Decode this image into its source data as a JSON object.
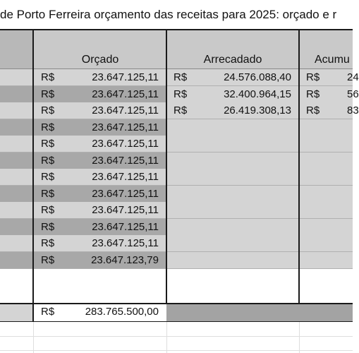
{
  "title": "de Porto Ferreira orçamento das receitas para 2025: orçado e r",
  "headers": {
    "orcado": "Orçado",
    "arrecadado": "Arrecadado",
    "acumulado": "Acumu"
  },
  "currency": "R$",
  "rows": [
    {
      "orcado": "23.647.125,11",
      "arrecadado": "24.576.088,40",
      "acumulado": "24"
    },
    {
      "orcado": "23.647.125,11",
      "arrecadado": "32.400.964,15",
      "acumulado": "56"
    },
    {
      "orcado": "23.647.125,11",
      "arrecadado": "26.419.308,13",
      "acumulado": "83"
    },
    {
      "orcado": "23.647.125,11",
      "arrecadado": "",
      "acumulado": ""
    },
    {
      "orcado": "23.647.125,11",
      "arrecadado": "",
      "acumulado": ""
    },
    {
      "orcado": "23.647.125,11",
      "arrecadado": "",
      "acumulado": ""
    },
    {
      "orcado": "23.647.125,11",
      "arrecadado": "",
      "acumulado": ""
    },
    {
      "orcado": "23.647.125,11",
      "arrecadado": "",
      "acumulado": ""
    },
    {
      "orcado": "23.647.125,11",
      "arrecadado": "",
      "acumulado": ""
    },
    {
      "orcado": "23.647.125,11",
      "arrecadado": "",
      "acumulado": ""
    },
    {
      "orcado": "23.647.125,11",
      "arrecadado": "",
      "acumulado": ""
    },
    {
      "orcado": "23.647.123,79",
      "arrecadado": "",
      "acumulado": ""
    }
  ],
  "total": {
    "orcado": "283.765.500,00"
  },
  "colors": {
    "light": "#d4d4d4",
    "dark": "#a8a8a8",
    "header_left": "#b8b8b8",
    "header": "#c9c9c9",
    "total_fill": "#a3a3a3"
  }
}
